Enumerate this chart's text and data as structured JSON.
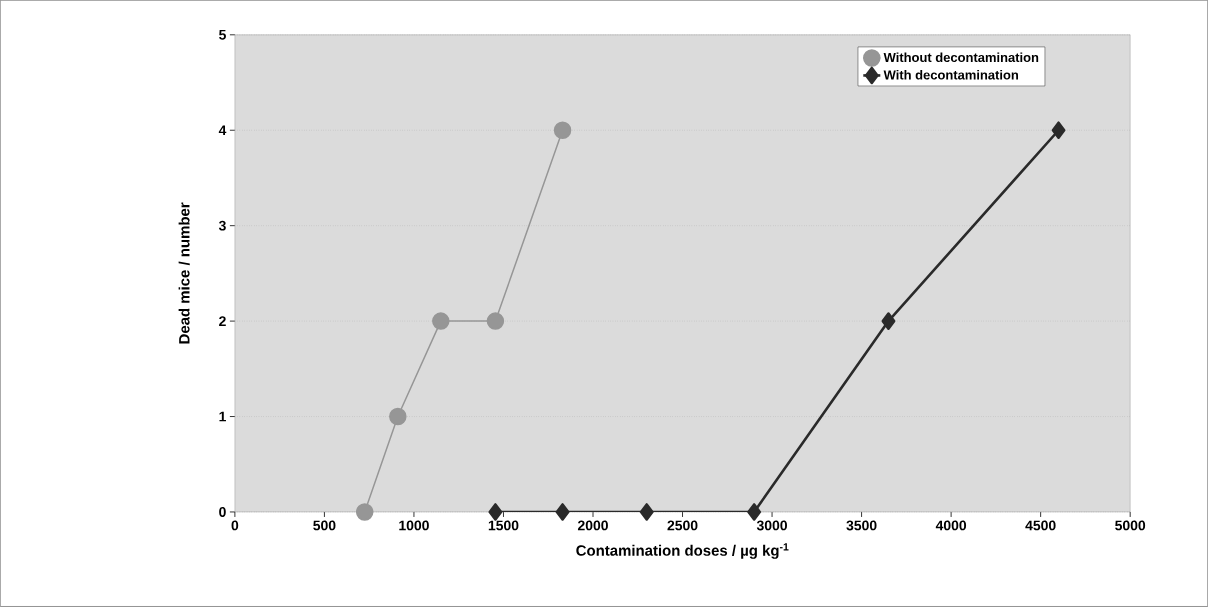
{
  "chart_data": {
    "type": "line",
    "xlabel": "Contamination doses / µg kg$^{-1}$",
    "ylabel": "Dead mice / number",
    "xlim": [
      0,
      5000
    ],
    "xticks": [
      0,
      500,
      1000,
      1500,
      2000,
      2500,
      3000,
      3500,
      4000,
      4500,
      5000
    ],
    "ylim": [
      0,
      5
    ],
    "yticks": [
      0,
      1,
      2,
      3,
      4,
      5
    ],
    "grid": "y",
    "legend": "top right",
    "series": [
      {
        "name": "Without decontamination",
        "color": "#969696",
        "marker": "circle",
        "x": [
          725,
          910,
          1150,
          1455,
          1830
        ],
        "values": [
          0,
          1,
          2,
          2,
          4
        ]
      },
      {
        "name": "With decontamination",
        "color": "#2a2a2a",
        "marker": "diamond",
        "x": [
          1455,
          1830,
          2300,
          2900,
          3650,
          4600
        ],
        "values": [
          0,
          0,
          0,
          0,
          2,
          4
        ]
      }
    ]
  }
}
